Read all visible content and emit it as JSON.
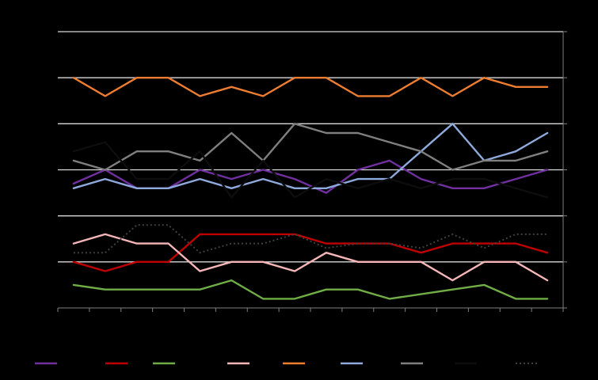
{
  "chart_data": {
    "type": "line",
    "title": "",
    "xlabel": "",
    "ylabel": "",
    "ylim": [
      0,
      6
    ],
    "grid": true,
    "legend_position": "bottom",
    "x": [
      1,
      2,
      3,
      4,
      5,
      6,
      7,
      8,
      9,
      10,
      11,
      12,
      13,
      14,
      15,
      16
    ],
    "series": [
      {
        "color": "#7030A0",
        "values": [
          2.7,
          3.0,
          2.6,
          2.6,
          3.0,
          2.8,
          3.0,
          2.8,
          2.5,
          3.0,
          3.2,
          2.8,
          2.6,
          2.6,
          2.8,
          3.0
        ]
      },
      {
        "color": "#C00000",
        "values": [
          1.0,
          0.8,
          1.0,
          1.0,
          1.6,
          1.6,
          1.6,
          1.6,
          1.4,
          1.4,
          1.4,
          1.2,
          1.4,
          1.4,
          1.4,
          1.2
        ]
      },
      {
        "color": "#70AD47",
        "values": [
          0.5,
          0.4,
          0.4,
          0.4,
          0.4,
          0.6,
          0.2,
          0.2,
          0.4,
          0.4,
          0.2,
          0.3,
          0.4,
          0.5,
          0.2,
          0.2
        ]
      },
      {
        "color": "#F4B6B6",
        "values": [
          1.4,
          1.6,
          1.4,
          1.4,
          0.8,
          1.0,
          1.0,
          0.8,
          1.2,
          1.0,
          1.0,
          1.0,
          0.6,
          1.0,
          1.0,
          0.6
        ]
      },
      {
        "color": "#ED7D31",
        "values": [
          5.0,
          4.6,
          5.0,
          5.0,
          4.6,
          4.8,
          4.6,
          5.0,
          5.0,
          4.6,
          4.6,
          5.0,
          4.6,
          5.0,
          4.8,
          4.8
        ]
      },
      {
        "color": "#8EA9DB",
        "values": [
          2.6,
          2.8,
          2.6,
          2.6,
          2.8,
          2.6,
          2.8,
          2.6,
          2.6,
          2.8,
          2.8,
          3.4,
          4.0,
          3.2,
          3.4,
          3.8
        ]
      },
      {
        "color": "#7F7F7F",
        "values": [
          3.2,
          3.0,
          3.4,
          3.4,
          3.2,
          3.8,
          3.2,
          4.0,
          3.8,
          3.8,
          3.6,
          3.4,
          3.0,
          3.2,
          3.2,
          3.4
        ]
      },
      {
        "color": "#0D0D0D",
        "values": [
          3.4,
          3.6,
          2.8,
          2.8,
          3.4,
          2.4,
          3.2,
          2.4,
          2.8,
          2.6,
          2.8,
          2.6,
          2.8,
          2.8,
          2.6,
          2.4
        ]
      },
      {
        "color": "#404040",
        "dashed": true,
        "values": [
          1.2,
          1.2,
          1.8,
          1.8,
          1.2,
          1.4,
          1.4,
          1.6,
          1.3,
          1.4,
          1.4,
          1.3,
          1.6,
          1.3,
          1.6,
          1.6
        ]
      }
    ]
  }
}
